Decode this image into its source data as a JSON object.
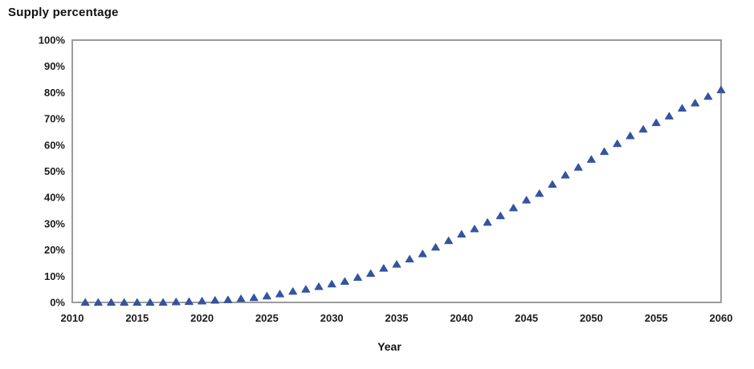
{
  "chart_data": {
    "type": "scatter",
    "title": "Supply percentage",
    "xlabel": "Year",
    "ylabel": "Supply percentage",
    "marker": "triangle-up",
    "marker_color": "#3554a0",
    "axis_color": "#9c9c9c",
    "label_color": "#1c1c1c",
    "grid": false,
    "legend_position": "none",
    "xlim": [
      2010,
      2060
    ],
    "ylim": [
      0,
      100
    ],
    "x_ticks": [
      {
        "value": 2010,
        "label": "2010"
      },
      {
        "value": 2015,
        "label": "2015"
      },
      {
        "value": 2020,
        "label": "2020"
      },
      {
        "value": 2025,
        "label": "2025"
      },
      {
        "value": 2030,
        "label": "2030"
      },
      {
        "value": 2035,
        "label": "2035"
      },
      {
        "value": 2040,
        "label": "2040"
      },
      {
        "value": 2045,
        "label": "2045"
      },
      {
        "value": 2050,
        "label": "2050"
      },
      {
        "value": 2055,
        "label": "2055"
      },
      {
        "value": 2060,
        "label": "2060"
      }
    ],
    "y_ticks": [
      {
        "value": 0,
        "label": "0%"
      },
      {
        "value": 10,
        "label": "10%"
      },
      {
        "value": 20,
        "label": "20%"
      },
      {
        "value": 30,
        "label": "30%"
      },
      {
        "value": 40,
        "label": "40%"
      },
      {
        "value": 50,
        "label": "50%"
      },
      {
        "value": 60,
        "label": "60%"
      },
      {
        "value": 70,
        "label": "70%"
      },
      {
        "value": 80,
        "label": "80%"
      },
      {
        "value": 90,
        "label": "90%"
      },
      {
        "value": 100,
        "label": "100%"
      }
    ],
    "series": [
      {
        "name": "Supply percentage",
        "x": [
          2011,
          2012,
          2013,
          2014,
          2015,
          2016,
          2017,
          2018,
          2019,
          2020,
          2021,
          2022,
          2023,
          2024,
          2025,
          2026,
          2027,
          2028,
          2029,
          2030,
          2031,
          2032,
          2033,
          2034,
          2035,
          2036,
          2037,
          2038,
          2039,
          2040,
          2041,
          2042,
          2043,
          2044,
          2045,
          2046,
          2047,
          2048,
          2049,
          2050,
          2051,
          2052,
          2053,
          2054,
          2055,
          2056,
          2057,
          2058,
          2059,
          2060
        ],
        "y": [
          0,
          0,
          0,
          0,
          0,
          0,
          0,
          0.2,
          0.3,
          0.5,
          0.8,
          1.0,
          1.4,
          1.8,
          2.4,
          3.2,
          4.2,
          5.0,
          6.0,
          7.0,
          8.0,
          9.5,
          11.0,
          13.0,
          14.5,
          16.5,
          18.5,
          21.0,
          23.5,
          26.0,
          28.0,
          30.5,
          33.0,
          36.0,
          39.0,
          41.5,
          45.0,
          48.5,
          51.5,
          54.5,
          57.5,
          60.5,
          63.5,
          66.0,
          68.5,
          71.0,
          74.0,
          76.0,
          78.5,
          81.0
        ]
      }
    ]
  }
}
